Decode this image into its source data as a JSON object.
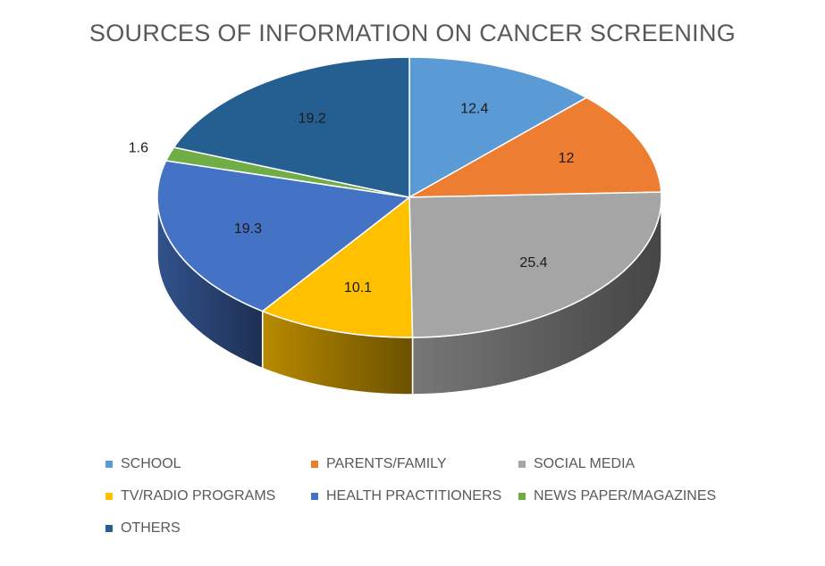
{
  "chart_data": {
    "type": "pie",
    "title": "SOURCES OF INFORMATION ON CANCER SCREENING",
    "legend_position": "bottom",
    "categories": [
      "SCHOOL",
      "PARENTS/FAMILY",
      "SOCIAL MEDIA",
      "TV/RADIO PROGRAMS",
      "HEALTH PRACTITIONERS",
      "NEWS PAPER/MAGAZINES",
      "OTHERS"
    ],
    "values": [
      12.4,
      12,
      25.4,
      10.1,
      19.3,
      1.6,
      19.2
    ],
    "labels": [
      "12.4",
      "12",
      "25.4",
      "10.1",
      "19.3",
      "1.6",
      "19.2"
    ],
    "colors": [
      "#5B9BD5",
      "#ED7D31",
      "#A5A5A5",
      "#FFC000",
      "#4472C4",
      "#70AD47",
      "#255E91"
    ]
  }
}
